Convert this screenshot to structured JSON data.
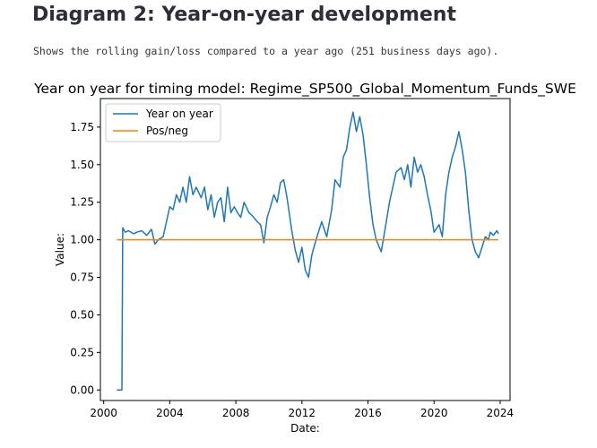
{
  "page": {
    "title": "Diagram 2: Year-on-year development",
    "subtitle": "Shows the rolling gain/loss compared to a year ago (251 business days ago)."
  },
  "colors": {
    "year_on_year": "#1f77b4",
    "pos_neg": "#ff7f0e"
  },
  "chart_data": {
    "type": "line",
    "title": "Year on year for timing model: Regime_SP500_Global_Momentum_Funds_SWE",
    "xlabel": "Date:",
    "ylabel": "Value:",
    "xlim": [
      1999.8,
      2024.6
    ],
    "ylim": [
      -0.07,
      1.94
    ],
    "xticks": [
      2000,
      2004,
      2008,
      2012,
      2016,
      2020,
      2024
    ],
    "xtick_labels": [
      "2000",
      "2004",
      "2008",
      "2012",
      "2016",
      "2020",
      "2024"
    ],
    "yticks": [
      0.0,
      0.25,
      0.5,
      0.75,
      1.0,
      1.25,
      1.5,
      1.75
    ],
    "ytick_labels": [
      "0.00",
      "0.25",
      "0.50",
      "0.75",
      "1.00",
      "1.25",
      "1.50",
      "1.75"
    ],
    "legend_position": "top-left",
    "series": [
      {
        "name": "Year on year",
        "color": "#1f77b4",
        "x": [
          2000.8,
          2001.1,
          2001.1,
          2001.15,
          2001.3,
          2001.5,
          2001.8,
          2002.0,
          2002.3,
          2002.6,
          2002.9,
          2003.1,
          2003.3,
          2003.6,
          2003.8,
          2004.0,
          2004.2,
          2004.4,
          2004.6,
          2004.8,
          2005.0,
          2005.2,
          2005.4,
          2005.6,
          2005.9,
          2006.1,
          2006.3,
          2006.5,
          2006.7,
          2006.9,
          2007.1,
          2007.3,
          2007.5,
          2007.7,
          2007.9,
          2008.1,
          2008.3,
          2008.5,
          2008.8,
          2009.0,
          2009.3,
          2009.5,
          2009.7,
          2009.9,
          2010.1,
          2010.3,
          2010.5,
          2010.7,
          2010.9,
          2011.1,
          2011.4,
          2011.6,
          2011.8,
          2012.0,
          2012.2,
          2012.4,
          2012.6,
          2012.8,
          2013.0,
          2013.2,
          2013.5,
          2013.8,
          2014.0,
          2014.3,
          2014.5,
          2014.7,
          2014.9,
          2015.1,
          2015.3,
          2015.5,
          2015.7,
          2015.9,
          2016.1,
          2016.3,
          2016.5,
          2016.8,
          2017.0,
          2017.3,
          2017.5,
          2017.7,
          2018.0,
          2018.2,
          2018.4,
          2018.6,
          2018.8,
          2019.0,
          2019.2,
          2019.4,
          2019.6,
          2019.8,
          2020.0,
          2020.3,
          2020.5,
          2020.7,
          2020.9,
          2021.1,
          2021.3,
          2021.5,
          2021.7,
          2021.9,
          2022.1,
          2022.3,
          2022.5,
          2022.7,
          2022.9,
          2023.1,
          2023.3,
          2023.4,
          2023.6,
          2023.8,
          2023.9
        ],
        "values": [
          0.0,
          0.0,
          0.0,
          1.08,
          1.05,
          1.06,
          1.04,
          1.05,
          1.06,
          1.03,
          1.07,
          0.97,
          1.0,
          1.02,
          1.12,
          1.22,
          1.2,
          1.3,
          1.25,
          1.35,
          1.25,
          1.42,
          1.3,
          1.35,
          1.28,
          1.35,
          1.2,
          1.3,
          1.15,
          1.25,
          1.28,
          1.12,
          1.35,
          1.18,
          1.22,
          1.18,
          1.15,
          1.25,
          1.18,
          1.16,
          1.12,
          1.1,
          0.98,
          1.15,
          1.22,
          1.3,
          1.25,
          1.38,
          1.4,
          1.28,
          1.05,
          0.93,
          0.85,
          0.95,
          0.8,
          0.75,
          0.9,
          0.98,
          1.05,
          1.12,
          1.02,
          1.2,
          1.4,
          1.35,
          1.55,
          1.6,
          1.75,
          1.85,
          1.72,
          1.82,
          1.7,
          1.5,
          1.28,
          1.1,
          1.0,
          0.92,
          1.05,
          1.25,
          1.35,
          1.45,
          1.48,
          1.4,
          1.5,
          1.35,
          1.55,
          1.45,
          1.5,
          1.42,
          1.3,
          1.2,
          1.05,
          1.1,
          1.02,
          1.3,
          1.45,
          1.55,
          1.62,
          1.72,
          1.6,
          1.45,
          1.2,
          1.0,
          0.92,
          0.88,
          0.95,
          1.02,
          1.0,
          1.05,
          1.03,
          1.06,
          1.04
        ]
      },
      {
        "name": "Pos/neg",
        "color": "#ff7f0e",
        "x": [
          2000.8,
          2023.9
        ],
        "values": [
          1.0,
          1.0
        ]
      }
    ]
  }
}
